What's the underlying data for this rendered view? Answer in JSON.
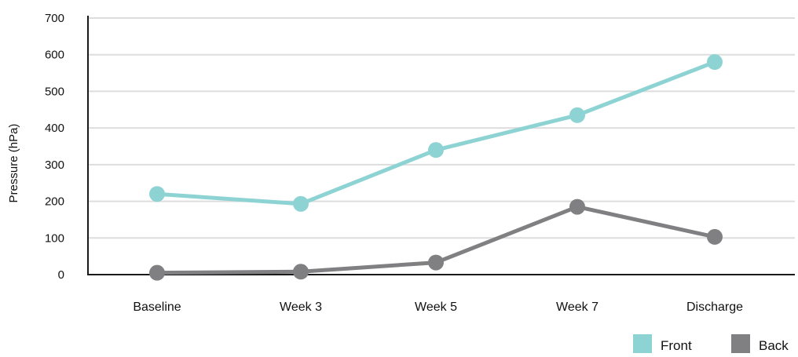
{
  "chart_data": {
    "type": "line",
    "categories": [
      "Baseline",
      "Week 3",
      "Week 5",
      "Week 7",
      "Discharge"
    ],
    "series": [
      {
        "name": "Front",
        "values": [
          220,
          193,
          340,
          435,
          580
        ],
        "color": "#8ed3d3"
      },
      {
        "name": "Back",
        "values": [
          5,
          8,
          33,
          185,
          103
        ],
        "color": "#808082"
      }
    ],
    "ylabel": "Pressure (hPa)",
    "xlabel": "",
    "ylim": [
      0,
      700
    ],
    "yticks": [
      0,
      100,
      200,
      300,
      400,
      500,
      600,
      700
    ],
    "grid": true,
    "legend": "bottom-right"
  }
}
